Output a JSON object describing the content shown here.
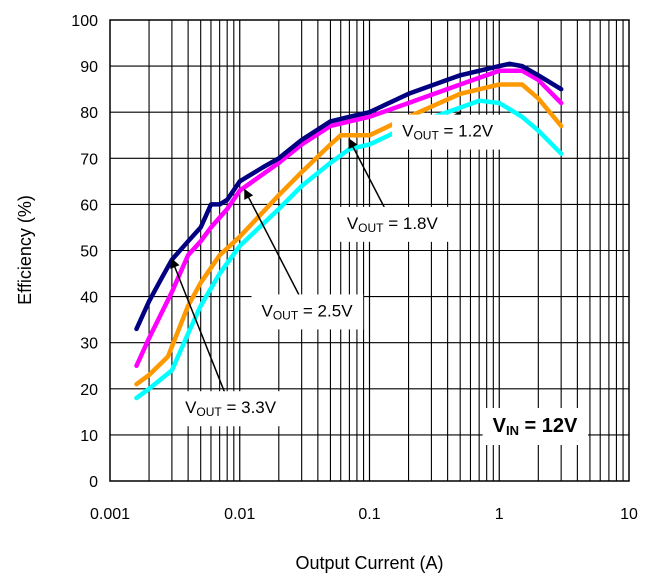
{
  "chart_data": {
    "type": "line",
    "title": "",
    "xlabel": "Output Current (A)",
    "ylabel": "Efficiency (%)",
    "xscale": "log",
    "xlim": [
      0.001,
      10
    ],
    "ylim": [
      0,
      100
    ],
    "x_ticks": [
      "0.001",
      "0.01",
      "0.1",
      "1",
      "10"
    ],
    "y_ticks": [
      "0",
      "10",
      "20",
      "30",
      "40",
      "50",
      "60",
      "70",
      "80",
      "90",
      "100"
    ],
    "grid": true,
    "series": [
      {
        "name": "VOUT = 3.3V",
        "color": "#000080",
        "x": [
          0.0016,
          0.002,
          0.0025,
          0.003,
          0.004,
          0.005,
          0.006,
          0.007,
          0.008,
          0.01,
          0.015,
          0.02,
          0.03,
          0.05,
          0.07,
          0.1,
          0.2,
          0.5,
          1.0,
          1.2,
          1.5,
          2.0,
          3.0
        ],
        "y": [
          33,
          39,
          44,
          48,
          52,
          55,
          60,
          60,
          61,
          65,
          68,
          70,
          74,
          78,
          79,
          80,
          84,
          88,
          90,
          90.5,
          90,
          88,
          85
        ]
      },
      {
        "name": "VOUT = 2.5V",
        "color": "#ff00ff",
        "x": [
          0.0016,
          0.002,
          0.003,
          0.004,
          0.005,
          0.006,
          0.008,
          0.01,
          0.02,
          0.03,
          0.05,
          0.07,
          0.1,
          0.2,
          0.5,
          1.0,
          1.5,
          2.0,
          3.0
        ],
        "y": [
          25,
          31,
          41,
          49,
          52,
          55,
          59,
          63,
          69,
          73,
          77,
          78,
          79,
          82,
          86,
          89,
          89,
          87,
          82
        ]
      },
      {
        "name": "VOUT = 1.8V",
        "color": "#ff9900",
        "x": [
          0.0016,
          0.002,
          0.0028,
          0.004,
          0.005,
          0.007,
          0.01,
          0.02,
          0.03,
          0.05,
          0.06,
          0.1,
          0.2,
          0.5,
          1.0,
          1.5,
          2.0,
          3.0
        ],
        "y": [
          21,
          23,
          27,
          38,
          43,
          49,
          53,
          62,
          67,
          73,
          75,
          75,
          79,
          84,
          86,
          86,
          83,
          77
        ]
      },
      {
        "name": "VOUT = 1.2V",
        "color": "#00ffff",
        "x": [
          0.0016,
          0.002,
          0.003,
          0.004,
          0.005,
          0.007,
          0.01,
          0.02,
          0.03,
          0.05,
          0.07,
          0.1,
          0.2,
          0.5,
          0.7,
          1.0,
          1.5,
          2.0,
          3.0
        ],
        "y": [
          18,
          20,
          24,
          32,
          38,
          45,
          51,
          59,
          64,
          69,
          72,
          73,
          77,
          81,
          82.5,
          82,
          79,
          76,
          71
        ]
      }
    ],
    "annotations": [
      {
        "label_pre": "V",
        "label_sub": "OUT",
        "label_post": " = 1.2V",
        "x": 0.4,
        "y": 76,
        "target_x": 0.5,
        "target_y": 80
      },
      {
        "label_pre": "V",
        "label_sub": "OUT",
        "label_post": " = 1.8V",
        "x": 0.15,
        "y": 56,
        "target_x": 0.07,
        "target_y": 74
      },
      {
        "label_pre": "V",
        "label_sub": "OUT",
        "label_post": " = 2.5V",
        "x": 0.033,
        "y": 37,
        "target_x": 0.011,
        "target_y": 63
      },
      {
        "label_pre": "V",
        "label_sub": "OUT",
        "label_post": " = 3.3V",
        "x": 0.0085,
        "y": 16,
        "target_x": 0.003,
        "target_y": 48
      }
    ],
    "vin_label": {
      "pre": "V",
      "sub": "IN",
      "post": " = 12V"
    }
  }
}
